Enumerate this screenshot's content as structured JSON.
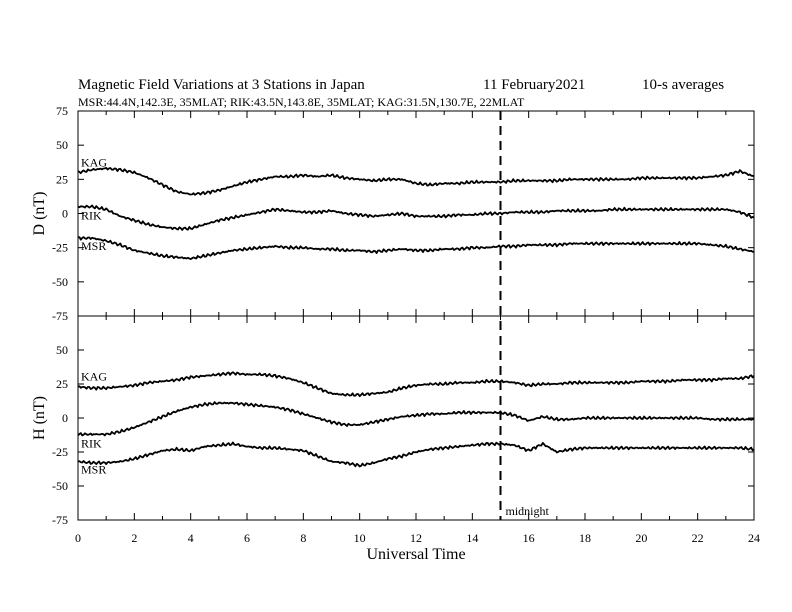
{
  "title": {
    "main": "Magnetic Field Variations at 3 Stations in Japan",
    "date": "11 February2021",
    "avg": "10-s averages"
  },
  "subtitle": "MSR:44.4N,142.3E, 35MLAT;  RIK:43.5N,143.8E, 35MLAT;  KAG:31.5N,130.7E, 22MLAT",
  "chart_data": [
    {
      "type": "line",
      "panel": "top",
      "ylabel": "D (nT)",
      "xlabel": "",
      "xlim": [
        0,
        24
      ],
      "ylim": [
        -75,
        75
      ],
      "yticks": [
        "75",
        "50",
        "25",
        "0",
        "-25",
        "-50",
        "-75"
      ],
      "grid": false,
      "x": [
        0,
        0.5,
        1,
        1.5,
        2,
        2.5,
        3,
        3.5,
        4,
        4.5,
        5,
        5.5,
        6,
        6.5,
        7,
        7.5,
        8,
        8.5,
        9,
        9.5,
        10,
        10.5,
        11,
        11.5,
        12,
        12.5,
        13,
        13.5,
        14,
        14.5,
        15,
        15.5,
        16,
        16.5,
        17,
        17.5,
        18,
        18.5,
        19,
        19.5,
        20,
        20.5,
        21,
        21.5,
        22,
        22.5,
        23,
        23.5,
        24
      ],
      "series": [
        {
          "name": "KAG",
          "values": [
            30,
            32,
            33,
            32,
            30,
            26,
            21,
            16,
            14,
            15,
            17,
            20,
            23,
            25,
            27,
            27,
            28,
            27,
            28,
            26,
            25,
            24,
            25,
            25,
            22,
            21,
            22,
            22,
            23,
            23,
            23,
            24,
            24,
            24,
            24,
            25,
            25,
            25,
            25,
            25,
            26,
            26,
            26,
            26,
            26,
            27,
            28,
            31,
            27
          ]
        },
        {
          "name": "RIK",
          "values": [
            5,
            5,
            3,
            -2,
            -5,
            -8,
            -10,
            -11,
            -11,
            -8,
            -5,
            -3,
            -1,
            1,
            3,
            2,
            1,
            1,
            2,
            0,
            -1,
            -2,
            -1,
            0,
            -2,
            -2,
            -2,
            -1,
            -1,
            0,
            0,
            1,
            1,
            1,
            2,
            2,
            2,
            2,
            3,
            3,
            3,
            3,
            3,
            3,
            3,
            3,
            3,
            1,
            -3
          ]
        },
        {
          "name": "MSR",
          "values": [
            -18,
            -18,
            -20,
            -23,
            -27,
            -29,
            -31,
            -32,
            -33,
            -31,
            -29,
            -27,
            -26,
            -25,
            -24,
            -25,
            -25,
            -26,
            -26,
            -27,
            -27,
            -28,
            -27,
            -26,
            -27,
            -27,
            -26,
            -26,
            -25,
            -25,
            -24,
            -24,
            -23,
            -23,
            -23,
            -22,
            -22,
            -22,
            -22,
            -22,
            -22,
            -22,
            -22,
            -22,
            -22,
            -23,
            -24,
            -26,
            -28
          ]
        }
      ]
    },
    {
      "type": "line",
      "panel": "bottom",
      "ylabel": "H (nT)",
      "xlabel": "Universal Time",
      "xlim": [
        0,
        24
      ],
      "ylim": [
        -75,
        75
      ],
      "xticks": [
        "0",
        "2",
        "4",
        "6",
        "8",
        "10",
        "12",
        "14",
        "16",
        "18",
        "20",
        "22",
        "24"
      ],
      "yticks": [
        "75",
        "50",
        "25",
        "0",
        "-25",
        "-50",
        "-75"
      ],
      "grid": false,
      "x": [
        0,
        0.5,
        1,
        1.5,
        2,
        2.5,
        3,
        3.5,
        4,
        4.5,
        5,
        5.5,
        6,
        6.5,
        7,
        7.5,
        8,
        8.5,
        9,
        9.5,
        10,
        10.5,
        11,
        11.5,
        12,
        12.5,
        13,
        13.5,
        14,
        14.5,
        15,
        15.5,
        16,
        16.5,
        17,
        17.5,
        18,
        18.5,
        19,
        19.5,
        20,
        20.5,
        21,
        21.5,
        22,
        22.5,
        23,
        23.5,
        24
      ],
      "series": [
        {
          "name": "KAG",
          "values": [
            23,
            22,
            22,
            23,
            24,
            26,
            27,
            28,
            30,
            31,
            32,
            33,
            32,
            32,
            31,
            29,
            26,
            22,
            18,
            17,
            17,
            18,
            19,
            22,
            24,
            25,
            25,
            26,
            26,
            27,
            27,
            26,
            24,
            25,
            25,
            26,
            26,
            26,
            26,
            26,
            27,
            27,
            27,
            28,
            28,
            28,
            29,
            29,
            31
          ]
        },
        {
          "name": "RIK",
          "values": [
            -12,
            -12,
            -12,
            -10,
            -7,
            -3,
            1,
            5,
            8,
            10,
            11,
            11,
            10,
            9,
            8,
            6,
            3,
            0,
            -3,
            -5,
            -5,
            -3,
            -1,
            1,
            2,
            3,
            3,
            4,
            4,
            4,
            4,
            2,
            -2,
            1,
            -1,
            -1,
            0,
            0,
            0,
            0,
            0,
            0,
            0,
            0,
            0,
            -1,
            -1,
            -1,
            -1
          ]
        },
        {
          "name": "MSR",
          "values": [
            -32,
            -33,
            -33,
            -32,
            -30,
            -27,
            -24,
            -23,
            -24,
            -21,
            -20,
            -19,
            -21,
            -22,
            -22,
            -23,
            -24,
            -28,
            -32,
            -33,
            -35,
            -33,
            -30,
            -28,
            -25,
            -23,
            -22,
            -21,
            -20,
            -19,
            -19,
            -20,
            -24,
            -19,
            -25,
            -23,
            -22,
            -22,
            -22,
            -22,
            -22,
            -22,
            -22,
            -22,
            -22,
            -22,
            -22,
            -22,
            -23
          ]
        }
      ]
    }
  ],
  "annotations": {
    "midnight_label": "midnight",
    "midnight_ut": 15
  }
}
